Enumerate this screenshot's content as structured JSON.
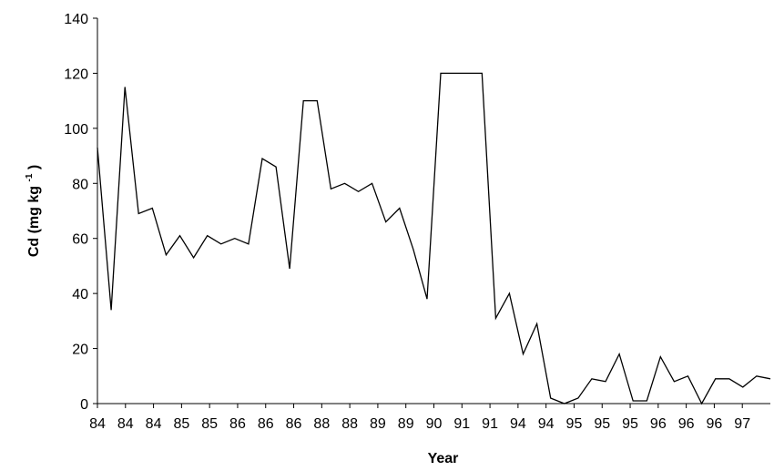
{
  "chart_data": {
    "type": "line",
    "xlabel": "Year",
    "ylabel": {
      "prefix": "Cd (mg kg",
      "superscript": "-1",
      "suffix": ")"
    },
    "ylim": [
      0,
      140
    ],
    "yticks": [
      0,
      20,
      40,
      60,
      80,
      100,
      120,
      140
    ],
    "xtick_labels": [
      "84",
      "84",
      "84",
      "85",
      "85",
      "86",
      "86",
      "86",
      "88",
      "88",
      "89",
      "89",
      "90",
      "91",
      "91",
      "94",
      "94",
      "95",
      "95",
      "95",
      "96",
      "96",
      "96",
      "97"
    ],
    "grid": false,
    "legend": "none",
    "line_color": "#000000",
    "series": [
      {
        "values": [
          93,
          34,
          115,
          69,
          71,
          54,
          61,
          53,
          61,
          58,
          60,
          58,
          89,
          86,
          49,
          110,
          110,
          78,
          80,
          77,
          80,
          66,
          71,
          56,
          38,
          120,
          120,
          120,
          120,
          31,
          40,
          18,
          29,
          2,
          0,
          2,
          9,
          8,
          18,
          1,
          1,
          17,
          8,
          10,
          0,
          9,
          9,
          6,
          10,
          9
        ]
      }
    ]
  }
}
